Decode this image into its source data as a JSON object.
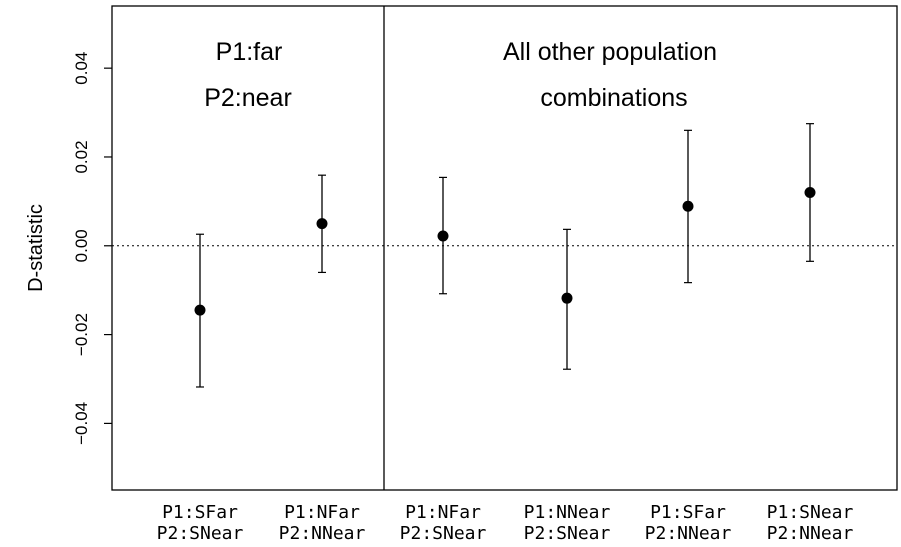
{
  "chart_data": {
    "type": "scatter",
    "ylabel": "D-statistic",
    "ylim": [
      -0.055,
      0.054
    ],
    "y_ticks": [
      -0.04,
      -0.02,
      0.0,
      0.02,
      0.04
    ],
    "y_tick_labels": [
      "−0.04",
      "−0.02",
      "0.00",
      "0.02",
      "0.04"
    ],
    "reference_line": 0.0,
    "panel_labels": {
      "left": [
        "P1:far",
        "P2:near"
      ],
      "right": [
        "All other population",
        "combinations"
      ]
    },
    "categories": [
      [
        "P1:SFar",
        "P2:SNear"
      ],
      [
        "P1:NFar",
        "P2:NNear"
      ],
      [
        "P1:NFar",
        "P2:SNear"
      ],
      [
        "P1:NNear",
        "P2:SNear"
      ],
      [
        "P1:SFar",
        "P2:NNear"
      ],
      [
        "P1:SNear",
        "P2:NNear"
      ]
    ],
    "values": [
      -0.0145,
      0.005,
      0.0022,
      -0.0118,
      0.0089,
      0.012
    ],
    "lower": [
      -0.0318,
      -0.006,
      -0.0108,
      -0.0278,
      -0.0083,
      -0.0035
    ],
    "upper": [
      0.0026,
      0.0159,
      0.0154,
      0.0037,
      0.026,
      0.0275
    ],
    "grid": false
  }
}
